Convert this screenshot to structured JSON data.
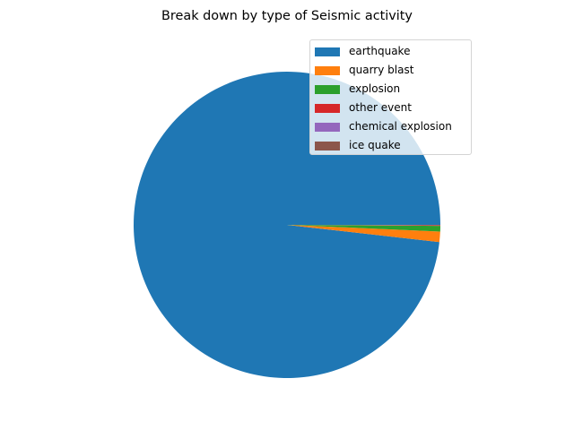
{
  "chart_data": {
    "type": "pie",
    "title": "Break down by type of Seismic activity",
    "categories": [
      "earthquake",
      "quarry blast",
      "explosion",
      "other event",
      "chemical explosion",
      "ice quake"
    ],
    "values": [
      98.2,
      1.1,
      0.6,
      0.05,
      0.03,
      0.02
    ],
    "colors": [
      "#1f77b4",
      "#ff7f0e",
      "#2ca02c",
      "#d62728",
      "#9467bd",
      "#8c564b"
    ],
    "start_angle_deg": 0,
    "direction": "counterclockwise",
    "legend": {
      "position": "upper right",
      "entries": [
        "earthquake",
        "quarry blast",
        "explosion",
        "other event",
        "chemical explosion",
        "ice quake"
      ]
    }
  }
}
